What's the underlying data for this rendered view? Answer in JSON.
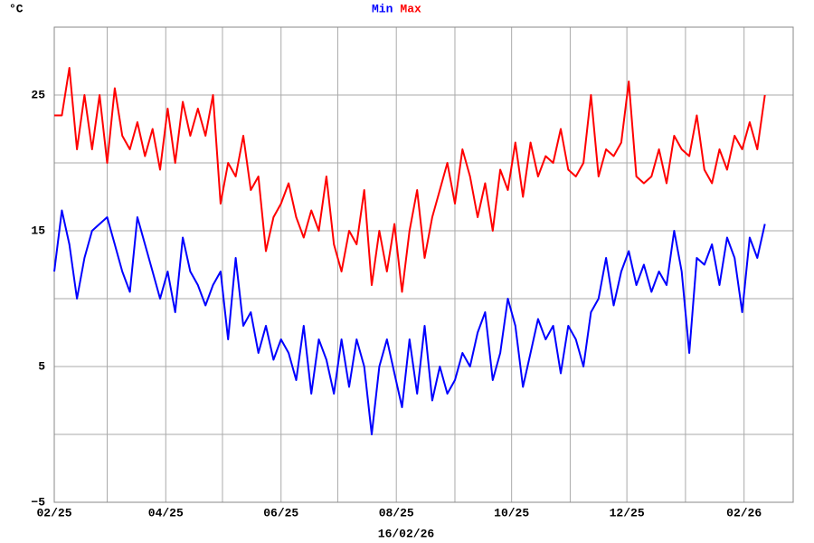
{
  "chart_data": {
    "type": "line",
    "unit_label": "°C",
    "date_label": "16/02/26",
    "x": [
      0,
      4,
      8,
      12,
      16,
      20,
      24,
      28,
      32,
      36,
      40,
      44,
      48,
      52,
      56,
      60,
      64,
      68,
      72,
      76,
      80,
      84,
      88,
      92,
      96,
      100,
      104,
      108,
      112,
      116,
      120,
      124,
      128,
      132,
      136,
      140,
      144,
      148,
      152,
      156,
      160,
      164,
      168,
      172,
      176,
      180,
      184,
      188,
      192,
      196,
      200,
      204,
      208,
      212,
      216,
      220,
      224,
      228,
      232,
      236,
      240,
      244,
      248,
      252,
      256,
      260,
      264,
      268,
      272,
      276,
      280,
      284,
      288,
      292,
      296,
      300,
      304,
      308,
      312,
      316,
      320,
      324,
      328,
      332,
      336,
      340,
      344,
      348,
      352,
      356,
      360,
      364,
      368,
      372,
      376
    ],
    "series": [
      {
        "name": "Min",
        "color": "#0000ff",
        "values": [
          12,
          16.5,
          14,
          10,
          13,
          15,
          15.5,
          16,
          14,
          12,
          10.5,
          16,
          14,
          12,
          10,
          12,
          9,
          14.5,
          12,
          11,
          9.5,
          11,
          12,
          7,
          13,
          8,
          9,
          6,
          8,
          5.5,
          7,
          6,
          4,
          8,
          3,
          7,
          5.5,
          3,
          7,
          3.5,
          7,
          5,
          0,
          5,
          7,
          4.5,
          2,
          7,
          3,
          8,
          2.5,
          5,
          3,
          4,
          6,
          5,
          7.5,
          9,
          4,
          6,
          10,
          8,
          3.5,
          6,
          8.5,
          7,
          8,
          4.5,
          8,
          7,
          5,
          9,
          10,
          13,
          9.5,
          12,
          13.5,
          11,
          12.5,
          10.5,
          12,
          11,
          15,
          12,
          6,
          13,
          12.5,
          14,
          11,
          14.5,
          13,
          9,
          14.5,
          13,
          15.5
        ]
      },
      {
        "name": "Max",
        "color": "#ff0000",
        "values": [
          23.5,
          23.5,
          27,
          21,
          25,
          21,
          25,
          20,
          25.5,
          22,
          21,
          23,
          20.5,
          22.5,
          19.5,
          24,
          20,
          24.5,
          22,
          24,
          22,
          25,
          17,
          20,
          19,
          22,
          18,
          19,
          13.5,
          16,
          17,
          18.5,
          16,
          14.5,
          16.5,
          15,
          19,
          14,
          12,
          15,
          14,
          18,
          11,
          15,
          12,
          15.5,
          10.5,
          15,
          18,
          13,
          16,
          18,
          20,
          17,
          21,
          19,
          16,
          18.5,
          15,
          19.5,
          18,
          21.5,
          17.5,
          21.5,
          19,
          20.5,
          20,
          22.5,
          19.5,
          19,
          20,
          25,
          19,
          21,
          20.5,
          21.5,
          26,
          19,
          18.5,
          19,
          21,
          18.5,
          22,
          21,
          20.5,
          23.5,
          19.5,
          18.5,
          21,
          19.5,
          22,
          21,
          23,
          21,
          25
        ]
      }
    ],
    "xlim": [
      0,
      391
    ],
    "xticks": [
      {
        "value": 0,
        "label": "02/25"
      },
      {
        "value": 59,
        "label": "04/25"
      },
      {
        "value": 120,
        "label": "06/25"
      },
      {
        "value": 181,
        "label": "08/25"
      },
      {
        "value": 242,
        "label": "10/25"
      },
      {
        "value": 303,
        "label": "12/25"
      },
      {
        "value": 365,
        "label": "02/26"
      }
    ],
    "minor_xticks": [
      28,
      89,
      150,
      212,
      273,
      334
    ],
    "ylim": [
      -5,
      30
    ],
    "yticks": [
      {
        "value": -5,
        "label": "−5"
      },
      5,
      15,
      25
    ],
    "minor_yticks": [
      0,
      10,
      20,
      30
    ],
    "grid": true
  }
}
